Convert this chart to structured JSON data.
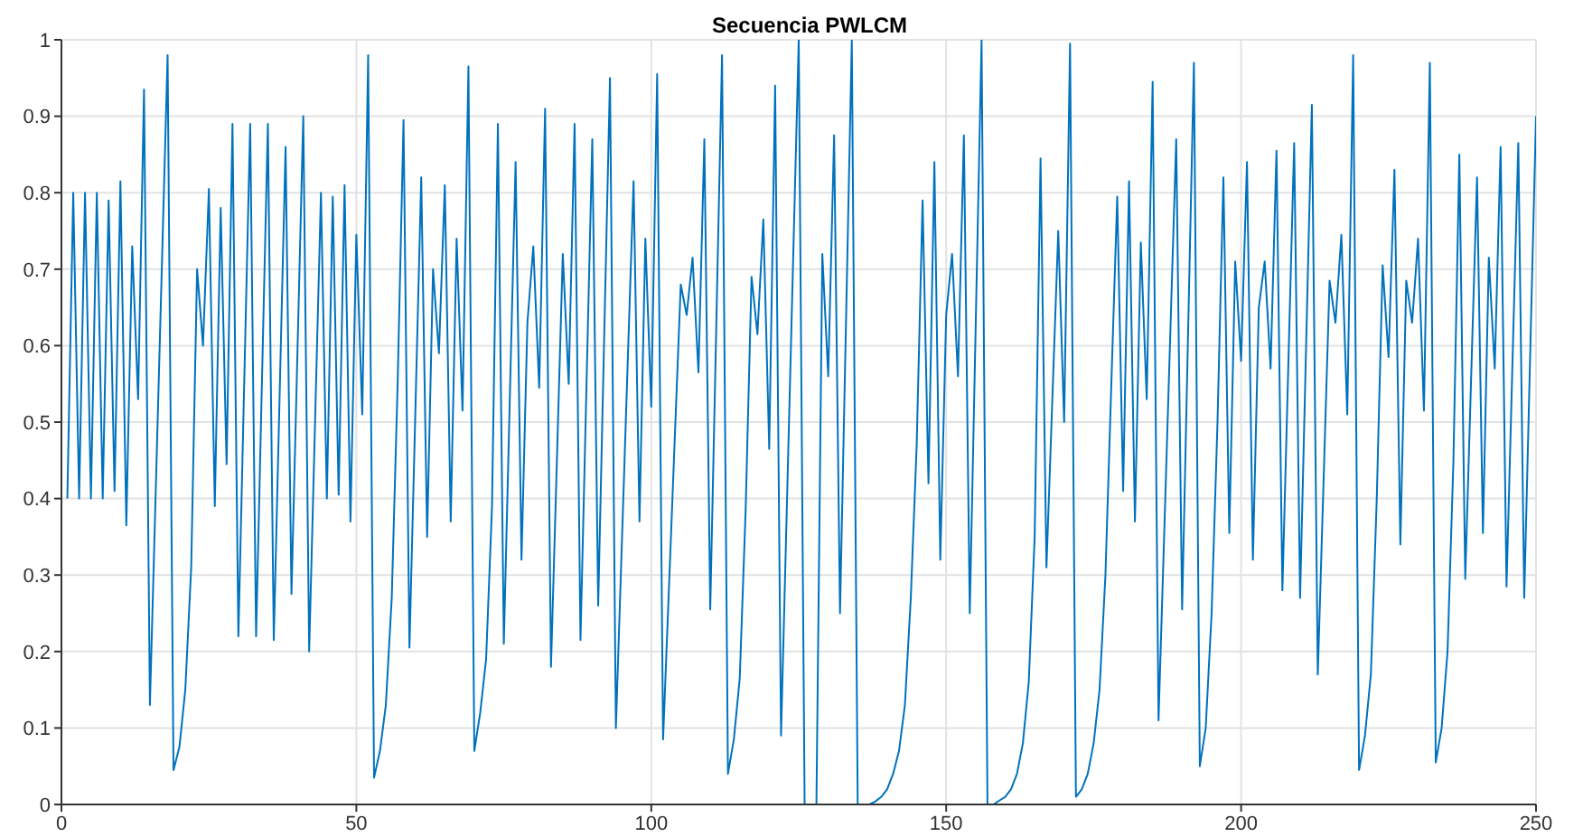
{
  "chart_data": {
    "type": "line",
    "title": "Secuencia PWLCM",
    "x": [
      1,
      2,
      3,
      4,
      5,
      6,
      7,
      8,
      9,
      10,
      11,
      12,
      13,
      14,
      15,
      18,
      19,
      20,
      21,
      22,
      23,
      24,
      25,
      26,
      27,
      28,
      29,
      30,
      32,
      33,
      35,
      36,
      38,
      39,
      41,
      42,
      44,
      45,
      46,
      47,
      48,
      49,
      50,
      51,
      52,
      53,
      54,
      55,
      56,
      57,
      58,
      59,
      61,
      62,
      63,
      64,
      65,
      66,
      67,
      68,
      69,
      70,
      71,
      72,
      73,
      74,
      75,
      77,
      78,
      79,
      80,
      81,
      82,
      83,
      85,
      86,
      87,
      88,
      90,
      91,
      93,
      94,
      97,
      98,
      99,
      100,
      101,
      102,
      105,
      106,
      107,
      108,
      109,
      110,
      112,
      113,
      114,
      115,
      116,
      117,
      118,
      119,
      120,
      121,
      122,
      125,
      126,
      128,
      129,
      130,
      131,
      132,
      134,
      135,
      137,
      138,
      139,
      140,
      141,
      142,
      143,
      144,
      145,
      146,
      147,
      148,
      149,
      150,
      151,
      152,
      153,
      154,
      156,
      157,
      158,
      159,
      160,
      161,
      162,
      163,
      164,
      165,
      166,
      167,
      169,
      170,
      171,
      172,
      173,
      174,
      175,
      176,
      177,
      178,
      179,
      180,
      181,
      182,
      183,
      184,
      185,
      186,
      189,
      190,
      192,
      193,
      194,
      195,
      196,
      197,
      198,
      199,
      200,
      201,
      202,
      203,
      204,
      205,
      206,
      207,
      209,
      210,
      212,
      213,
      215,
      216,
      217,
      218,
      219,
      220,
      221,
      222,
      223,
      224,
      225,
      226,
      227,
      228,
      229,
      230,
      231,
      232,
      233,
      234,
      235,
      236,
      237,
      238,
      240,
      241,
      242,
      243,
      244,
      245,
      247,
      248,
      250
    ],
    "series": [
      {
        "color": "#0072bd",
        "values": [
          0.4,
          0.8,
          0.4,
          0.8,
          0.4,
          0.8,
          0.4,
          0.79,
          0.41,
          0.815,
          0.365,
          0.73,
          0.53,
          0.935,
          0.13,
          0.98,
          0.045,
          0.075,
          0.15,
          0.31,
          0.7,
          0.6,
          0.805,
          0.39,
          0.78,
          0.445,
          0.89,
          0.22,
          0.89,
          0.22,
          0.89,
          0.215,
          0.86,
          0.275,
          0.9,
          0.2,
          0.8,
          0.4,
          0.795,
          0.405,
          0.81,
          0.37,
          0.745,
          0.51,
          0.98,
          0.035,
          0.07,
          0.13,
          0.27,
          0.55,
          0.895,
          0.205,
          0.82,
          0.35,
          0.7,
          0.59,
          0.81,
          0.37,
          0.74,
          0.515,
          0.965,
          0.07,
          0.12,
          0.19,
          0.39,
          0.89,
          0.21,
          0.84,
          0.32,
          0.63,
          0.73,
          0.545,
          0.91,
          0.18,
          0.72,
          0.55,
          0.89,
          0.215,
          0.87,
          0.26,
          0.95,
          0.1,
          0.815,
          0.37,
          0.74,
          0.52,
          0.955,
          0.085,
          0.68,
          0.64,
          0.715,
          0.565,
          0.87,
          0.255,
          0.98,
          0.04,
          0.085,
          0.165,
          0.385,
          0.69,
          0.615,
          0.765,
          0.465,
          0.94,
          0.09,
          1,
          0,
          0,
          0.72,
          0.56,
          0.875,
          0.25,
          1,
          0,
          0,
          0.004,
          0.01,
          0.02,
          0.04,
          0.07,
          0.13,
          0.27,
          0.47,
          0.79,
          0.42,
          0.84,
          0.32,
          0.64,
          0.72,
          0.56,
          0.875,
          0.25,
          1,
          0,
          0,
          0.005,
          0.01,
          0.02,
          0.04,
          0.08,
          0.16,
          0.35,
          0.845,
          0.31,
          0.75,
          0.5,
          0.995,
          0.01,
          0.02,
          0.04,
          0.08,
          0.15,
          0.3,
          0.55,
          0.795,
          0.41,
          0.815,
          0.37,
          0.735,
          0.53,
          0.945,
          0.11,
          0.87,
          0.255,
          0.97,
          0.05,
          0.1,
          0.25,
          0.5,
          0.82,
          0.355,
          0.71,
          0.58,
          0.84,
          0.32,
          0.65,
          0.71,
          0.57,
          0.855,
          0.28,
          0.865,
          0.27,
          0.915,
          0.17,
          0.685,
          0.63,
          0.745,
          0.51,
          0.98,
          0.045,
          0.09,
          0.17,
          0.4,
          0.705,
          0.585,
          0.83,
          0.34,
          0.685,
          0.63,
          0.74,
          0.515,
          0.97,
          0.055,
          0.1,
          0.2,
          0.45,
          0.85,
          0.295,
          0.82,
          0.355,
          0.715,
          0.57,
          0.86,
          0.285,
          0.865,
          0.27,
          0.9
        ]
      }
    ],
    "xlim": [
      0,
      250
    ],
    "xticks": [
      0,
      50,
      100,
      150,
      200,
      250
    ],
    "ylim": [
      0,
      1
    ],
    "yticks": [
      0,
      0.1,
      0.2,
      0.3,
      0.4,
      0.5,
      0.6,
      0.7,
      0.8,
      0.9,
      1
    ],
    "grid": true,
    "legend": false,
    "marker": "none",
    "line_style": "solid"
  }
}
